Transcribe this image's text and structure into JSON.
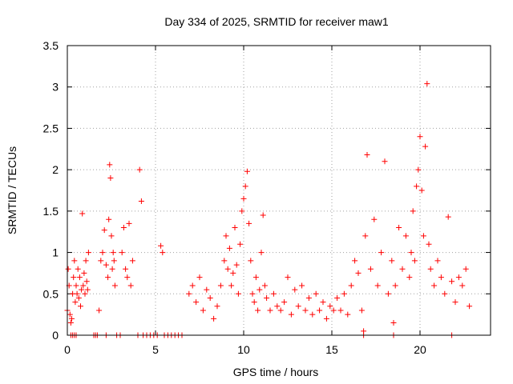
{
  "chart_data": {
    "type": "scatter",
    "title": "Day 334 of 2025, SRMTID for receiver maw1",
    "xlabel": "GPS time / hours",
    "ylabel": "SRMTID / TECUs",
    "xlim": [
      0,
      24
    ],
    "ylim": [
      0,
      3.5
    ],
    "xticks": [
      0,
      5,
      10,
      15,
      20
    ],
    "xtick_labels": [
      "0",
      "5",
      "10",
      "15",
      "20"
    ],
    "yticks": [
      0,
      0.5,
      1,
      1.5,
      2,
      2.5,
      3,
      3.5
    ],
    "ytick_labels": [
      "0",
      "0.5",
      "1",
      "1.5",
      "2",
      "2.5",
      "3",
      "3.5"
    ],
    "grid": true,
    "marker": "plus",
    "color": "#ff0000",
    "series": [
      {
        "name": "SRMTID",
        "x": [
          0.0,
          0.05,
          0.1,
          0.15,
          0.2,
          0.25,
          0.3,
          0.35,
          0.4,
          0.45,
          0.5,
          0.55,
          0.6,
          0.65,
          0.7,
          0.75,
          0.8,
          0.85,
          0.9,
          0.95,
          1.0,
          1.05,
          1.1,
          1.15,
          1.2,
          1.8,
          1.9,
          2.0,
          2.1,
          2.2,
          2.3,
          2.35,
          2.4,
          2.45,
          2.5,
          2.55,
          2.6,
          2.65,
          2.7,
          3.1,
          3.2,
          3.3,
          3.4,
          3.5,
          3.6,
          3.7,
          4.1,
          4.2,
          5.3,
          5.4,
          6.9,
          7.1,
          7.3,
          7.5,
          7.7,
          7.9,
          8.1,
          8.3,
          8.5,
          8.7,
          8.9,
          9.0,
          9.1,
          9.2,
          9.3,
          9.4,
          9.5,
          9.6,
          9.7,
          9.8,
          9.9,
          10.0,
          10.1,
          10.2,
          10.3,
          10.4,
          10.5,
          10.6,
          10.7,
          10.8,
          10.9,
          11.0,
          11.1,
          11.2,
          11.3,
          11.5,
          11.7,
          11.9,
          12.1,
          12.3,
          12.5,
          12.7,
          12.9,
          13.1,
          13.3,
          13.5,
          13.7,
          13.9,
          14.1,
          14.3,
          14.5,
          14.7,
          14.9,
          15.1,
          15.3,
          15.5,
          15.7,
          15.9,
          16.1,
          16.3,
          16.5,
          16.7,
          16.8,
          16.9,
          17.0,
          17.2,
          17.4,
          17.6,
          17.8,
          18.0,
          18.2,
          18.4,
          18.5,
          18.6,
          18.8,
          19.0,
          19.2,
          19.4,
          19.5,
          19.6,
          19.7,
          19.8,
          19.9,
          20.0,
          20.1,
          20.2,
          20.3,
          20.4,
          20.5,
          20.6,
          20.8,
          21.0,
          21.2,
          21.4,
          21.6,
          21.8,
          22.0,
          22.2,
          22.4,
          22.6,
          22.8,
          0.2,
          0.3,
          0.4,
          0.5,
          1.5,
          1.6,
          1.7,
          2.2,
          2.8,
          3.0,
          4.0,
          4.3,
          4.5,
          4.7,
          4.9,
          5.1,
          5.5,
          5.7,
          5.9,
          6.1,
          6.3,
          6.5,
          16.8,
          18.5,
          21.8
        ],
        "y": [
          0.3,
          0.8,
          0.6,
          0.25,
          0.15,
          0.2,
          0.5,
          0.7,
          0.9,
          0.4,
          0.6,
          0.5,
          0.8,
          0.45,
          0.7,
          0.35,
          0.55,
          1.47,
          0.6,
          0.75,
          0.5,
          0.9,
          0.65,
          0.55,
          1.0,
          0.3,
          0.9,
          1.0,
          1.27,
          0.85,
          0.7,
          1.4,
          2.06,
          1.9,
          1.2,
          0.8,
          1.0,
          0.9,
          0.6,
          1.0,
          1.3,
          0.8,
          0.7,
          1.35,
          0.6,
          0.9,
          2.0,
          1.62,
          1.08,
          1.0,
          0.5,
          0.6,
          0.4,
          0.7,
          0.3,
          0.55,
          0.45,
          0.2,
          0.35,
          0.6,
          0.9,
          1.2,
          0.8,
          1.05,
          0.6,
          0.75,
          1.3,
          0.85,
          0.5,
          1.1,
          1.5,
          1.65,
          1.8,
          1.98,
          1.35,
          0.9,
          0.5,
          0.4,
          0.7,
          0.3,
          0.55,
          1.0,
          1.45,
          0.6,
          0.45,
          0.3,
          0.5,
          0.35,
          0.3,
          0.4,
          0.7,
          0.25,
          0.55,
          0.35,
          0.6,
          0.3,
          0.45,
          0.25,
          0.5,
          0.3,
          0.4,
          0.2,
          0.35,
          0.3,
          0.45,
          0.3,
          0.5,
          0.25,
          0.6,
          0.9,
          0.75,
          0.3,
          0.05,
          1.2,
          2.18,
          0.8,
          1.4,
          0.6,
          1.0,
          2.1,
          0.5,
          0.9,
          0.15,
          0.6,
          1.3,
          0.8,
          1.2,
          0.7,
          1.0,
          1.5,
          0.9,
          1.8,
          2.0,
          2.4,
          1.75,
          1.2,
          2.28,
          3.04,
          1.1,
          0.8,
          0.6,
          0.9,
          0.7,
          0.5,
          1.43,
          0.65,
          0.4,
          0.7,
          0.6,
          0.8,
          0.35,
          0,
          0,
          0,
          0,
          0,
          0,
          0,
          0,
          0,
          0,
          0,
          0,
          0,
          0,
          0,
          0,
          0,
          0,
          0,
          0,
          0,
          0,
          0,
          0,
          0
        ]
      }
    ]
  }
}
